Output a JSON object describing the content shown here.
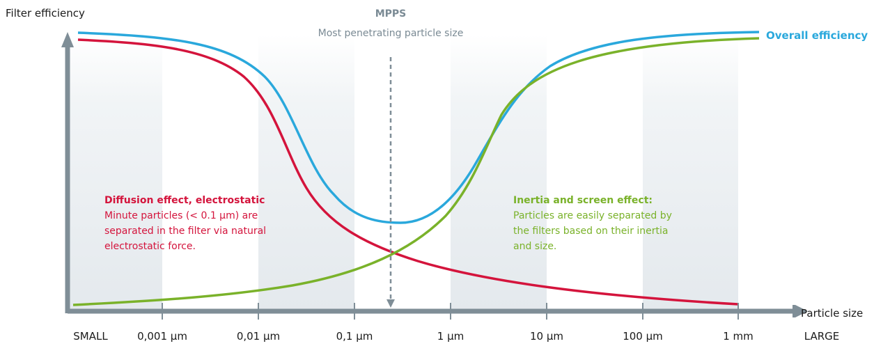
{
  "chart_data": {
    "type": "line",
    "xlabel": "Particle size",
    "ylabel": "Filter efficiency",
    "x_scale": "log",
    "tick_labels": [
      "SMALL",
      "0,001 µm",
      "0,01 µm",
      "0,1 µm",
      "1 µm",
      "10 µm",
      "100 µm",
      "1 mm",
      "LARGE"
    ],
    "annotation_mpps": {
      "title": "MPPS",
      "subtitle": "Most penetrating particle size"
    },
    "annotation_diffusion": {
      "title": "Diffusion effect, electrostatic",
      "lines": [
        "Minute particles (< 0.1 µm) are",
        "separated in the filter via natural",
        "electrostatic force."
      ]
    },
    "annotation_inertia": {
      "title": "Inertia and screen effect:",
      "lines": [
        "Particles are easily separated by",
        "the filters based on their inertia",
        "and size."
      ]
    },
    "series": [
      {
        "name": "Overall efficiency",
        "color": "#2aa8dc"
      },
      {
        "name": "Diffusion effect, electrostatic",
        "color": "#d4143c"
      },
      {
        "name": "Inertia and screen effect:",
        "color": "#7ab22a"
      }
    ],
    "colors": {
      "axis": "#7f8e97",
      "shade_band": "#e9eef2",
      "mpps_arrow": "#7f8e97"
    },
    "grid": false
  }
}
